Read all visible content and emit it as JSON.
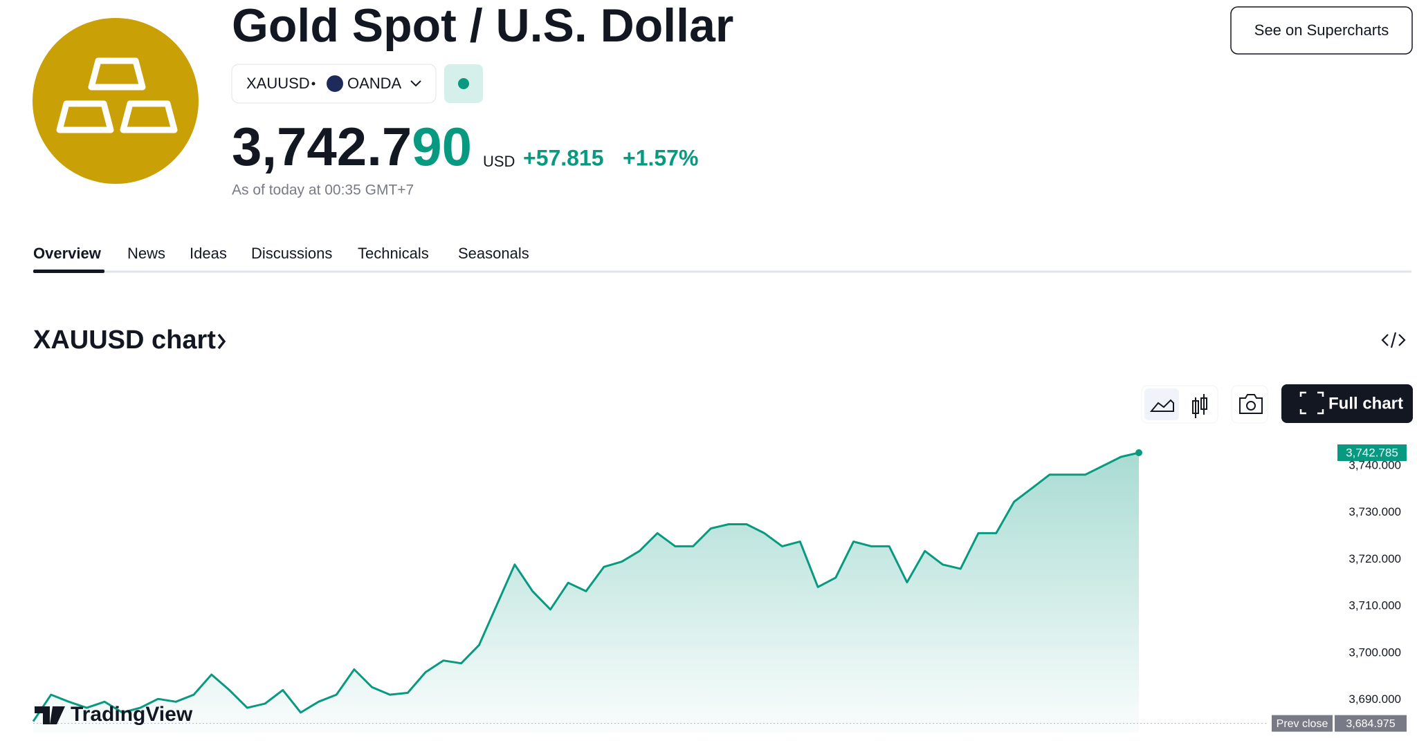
{
  "header": {
    "title": "Gold Spot / U.S. Dollar",
    "symbol": "XAUUSD",
    "exchange": "OANDA",
    "price_main": "3,742.7",
    "price_tail": "90",
    "currency": "USD",
    "change": "+57.815",
    "change_pct": "+1.57%",
    "as_of": "As of today at 00:35 GMT+7",
    "supercharts_button": "See on Supercharts"
  },
  "tabs": [
    "Overview",
    "News",
    "Ideas",
    "Discussions",
    "Technicals",
    "Seasonals"
  ],
  "section": {
    "title": "XAUUSD chart",
    "full_chart_button": "Full chart",
    "brand": "TradingView"
  },
  "chart_data": {
    "type": "area",
    "color": "#089981",
    "values": [
      3685.4,
      3691.1,
      3689.6,
      3688.3,
      3689.6,
      3687.3,
      3688.3,
      3690.2,
      3689.6,
      3691.1,
      3695.4,
      3692.1,
      3688.3,
      3689.2,
      3692.1,
      3687.3,
      3689.6,
      3691.1,
      3696.5,
      3692.7,
      3691.1,
      3691.5,
      3695.9,
      3698.4,
      3697.8,
      3701.7,
      3710.3,
      3718.9,
      3713.2,
      3709.3,
      3715.0,
      3713.2,
      3718.4,
      3719.5,
      3721.8,
      3725.6,
      3722.8,
      3722.8,
      3726.6,
      3727.5,
      3727.5,
      3725.6,
      3722.8,
      3723.8,
      3714.1,
      3716.1,
      3723.8,
      3722.8,
      3722.8,
      3715.1,
      3721.8,
      3718.9,
      3718.0,
      3725.6,
      3725.6,
      3732.3,
      3735.2,
      3738.1,
      3738.1,
      3738.1,
      3740.0,
      3741.9,
      3742.785
    ],
    "ylim": [
      3683,
      3745
    ],
    "yticks": [
      {
        "value": 3690,
        "label": "3,690.000"
      },
      {
        "value": 3700,
        "label": "3,700.000"
      },
      {
        "value": 3710,
        "label": "3,710.000"
      },
      {
        "value": 3720,
        "label": "3,720.000"
      },
      {
        "value": 3730,
        "label": "3,730.000"
      },
      {
        "value": 3740,
        "label": "3,740.000"
      }
    ],
    "last_price": {
      "value": 3742.785,
      "label": "3,742.785"
    },
    "prev_close": {
      "name": "Prev close",
      "value": 3684.975,
      "label": "3,684.975"
    }
  }
}
